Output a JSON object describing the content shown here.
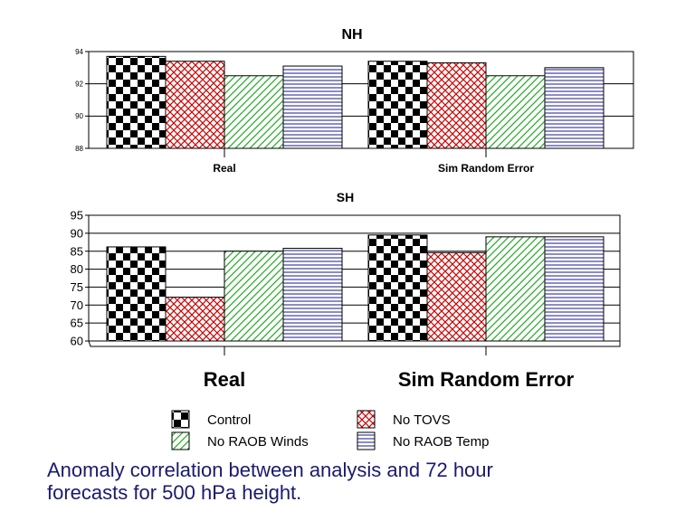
{
  "chart_data": [
    {
      "type": "bar",
      "title": "NH",
      "categories": [
        "Real",
        "Sim Random Error"
      ],
      "ylim": [
        88,
        94
      ],
      "yticks": [
        "88",
        "90",
        "92",
        "94"
      ],
      "grid": true,
      "series": [
        {
          "name": "Control",
          "values": [
            93.7,
            93.4
          ]
        },
        {
          "name": "No TOVS",
          "values": [
            93.4,
            93.3
          ]
        },
        {
          "name": "No RAOB Winds",
          "values": [
            92.5,
            92.5
          ]
        },
        {
          "name": "No RAOB Temp",
          "values": [
            93.1,
            93.0
          ]
        }
      ]
    },
    {
      "type": "bar",
      "title": "SH",
      "categories": [
        "Real",
        "Sim Random Error"
      ],
      "ylim": [
        60,
        95
      ],
      "yticks": [
        "60",
        "65",
        "70",
        "75",
        "80",
        "85",
        "90",
        "95"
      ],
      "grid": true,
      "series": [
        {
          "name": "Control",
          "values": [
            86.2,
            89.5
          ]
        },
        {
          "name": "No TOVS",
          "values": [
            72.2,
            84.6
          ]
        },
        {
          "name": "No RAOB Winds",
          "values": [
            85.0,
            89.0
          ]
        },
        {
          "name": "No RAOB Temp",
          "values": [
            85.8,
            89.0
          ]
        }
      ]
    }
  ],
  "legend": {
    "placement": "bottom",
    "items": [
      {
        "label": "Control",
        "pattern": "checker",
        "color": "#000000"
      },
      {
        "label": "No TOVS",
        "pattern": "crosshatch",
        "color": "#cc0000"
      },
      {
        "label": "No RAOB Winds",
        "pattern": "diagonal",
        "color": "#22aa22"
      },
      {
        "label": "No RAOB Temp",
        "pattern": "horizontal",
        "color": "#1a1a8c"
      }
    ]
  },
  "caption": {
    "line1": "Anomaly correlation between  analysis and 72 hour",
    "line2": "forecasts for 500 hPa height."
  }
}
